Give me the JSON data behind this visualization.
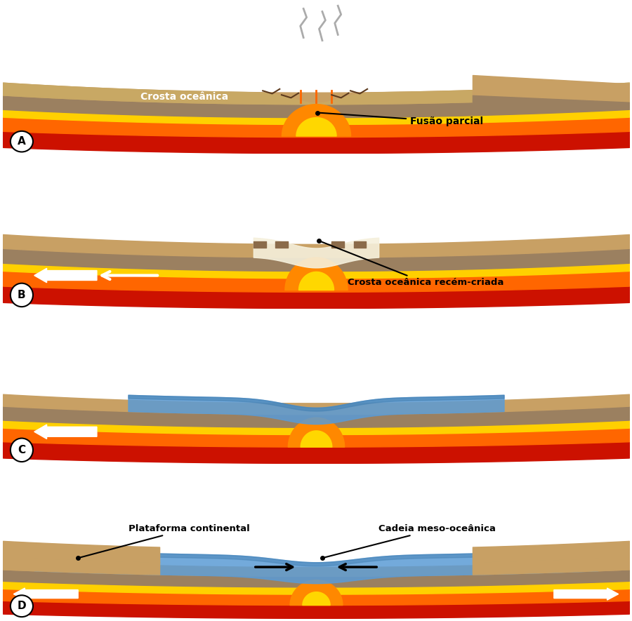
{
  "title": "",
  "panels": [
    "A",
    "B",
    "C",
    "D"
  ],
  "labels": {
    "A": {
      "crosta": "Crosta oceânica",
      "fusao": "Fusão parcial"
    },
    "B": {
      "crosta_nova": "Crosta oceânica recém-criada"
    },
    "C": {},
    "D": {
      "plataforma": "Plataforma continental",
      "cadeia": "Cadeia meso-oceânica"
    }
  },
  "colors": {
    "surface": "#C8A064",
    "crust": "#8B6B4A",
    "mantle_yellow": "#FFD700",
    "mantle_orange": "#FF8C00",
    "mantle_red": "#CC2200",
    "magma_orange": "#FF6600",
    "magma_yellow": "#FFD700",
    "ocean_blue": "#5B9BD5",
    "ocean_blue2": "#4682B4",
    "background": "#FFFFFF",
    "label_dark": "#000000",
    "label_white": "#FFFFFF",
    "arrow_white": "#FFFFFF",
    "arrow_black": "#000000",
    "panel_bg": "#F0F0F0"
  },
  "figsize": [
    9.0,
    8.85
  ],
  "dpi": 100
}
